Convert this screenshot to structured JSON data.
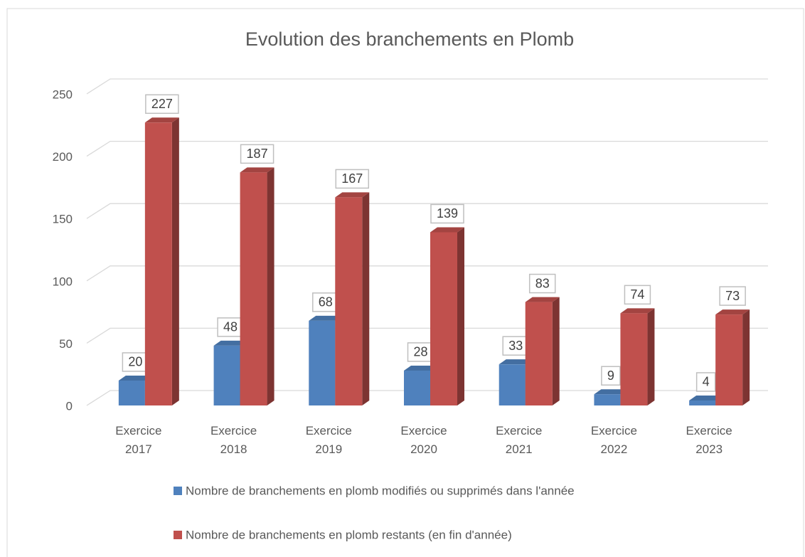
{
  "chart_data": {
    "type": "bar3d",
    "title": "Evolution des branchements en Plomb",
    "categories": [
      "Exercice 2017",
      "Exercice 2018",
      "Exercice 2019",
      "Exercice 2020",
      "Exercice 2021",
      "Exercice 2022",
      "Exercice 2023"
    ],
    "series": [
      {
        "name": "Nombre de branchements en plomb modifiés ou supprimés dans l'année",
        "color": "#4f81bd",
        "values": [
          20,
          48,
          68,
          28,
          33,
          9,
          4
        ]
      },
      {
        "name": "Nombre de branchements en plomb restants (en fin d'année)",
        "color": "#c0504d",
        "values": [
          227,
          187,
          167,
          139,
          83,
          74,
          73
        ]
      }
    ],
    "ylim": [
      0,
      250
    ],
    "yticks": [
      0,
      50,
      100,
      150,
      200,
      250
    ],
    "grid": true,
    "legend": "bottom"
  }
}
